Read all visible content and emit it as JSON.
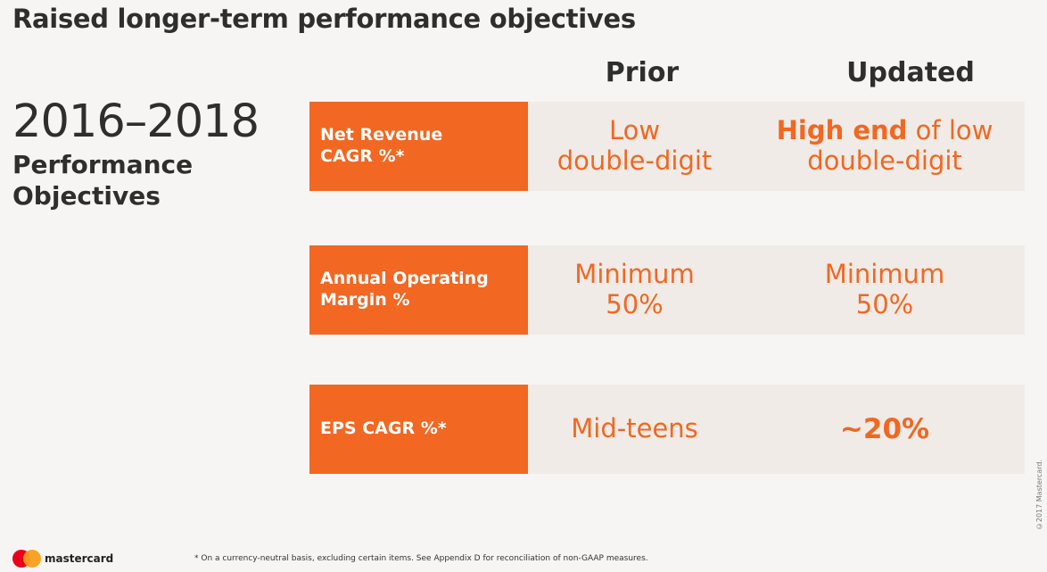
{
  "title": "Raised longer-term performance objectives",
  "columns": {
    "prior": "Prior",
    "updated": "Updated"
  },
  "left": {
    "years": "2016–2018",
    "line1": "Performance",
    "line2": "Objectives"
  },
  "rows": [
    {
      "label_l1": "Net Revenue",
      "label_l2": "CAGR %*",
      "prior_l1": "Low",
      "prior_l2": "double-digit",
      "updated_emph": "High end",
      "updated_rest": " of low",
      "updated_l2": "double-digit"
    },
    {
      "label_l1": "Annual Operating",
      "label_l2": "Margin %",
      "prior_l1": "Minimum",
      "prior_l2": "50%",
      "updated_l1": "Minimum",
      "updated_l2": "50%"
    },
    {
      "label_l1": "EPS CAGR %*",
      "prior_l1": "Mid-teens",
      "updated_l1": "~20%"
    }
  ],
  "footnote": "* On a currency-neutral basis, excluding certain items. See Appendix D for reconciliation of non-GAAP measures.",
  "brand": "mastercard",
  "copyright": "©2017 Mastercard.",
  "colors": {
    "accent": "#f26722",
    "cell_bg": "#f0ebe6",
    "page_bg": "#f6f5f3"
  }
}
